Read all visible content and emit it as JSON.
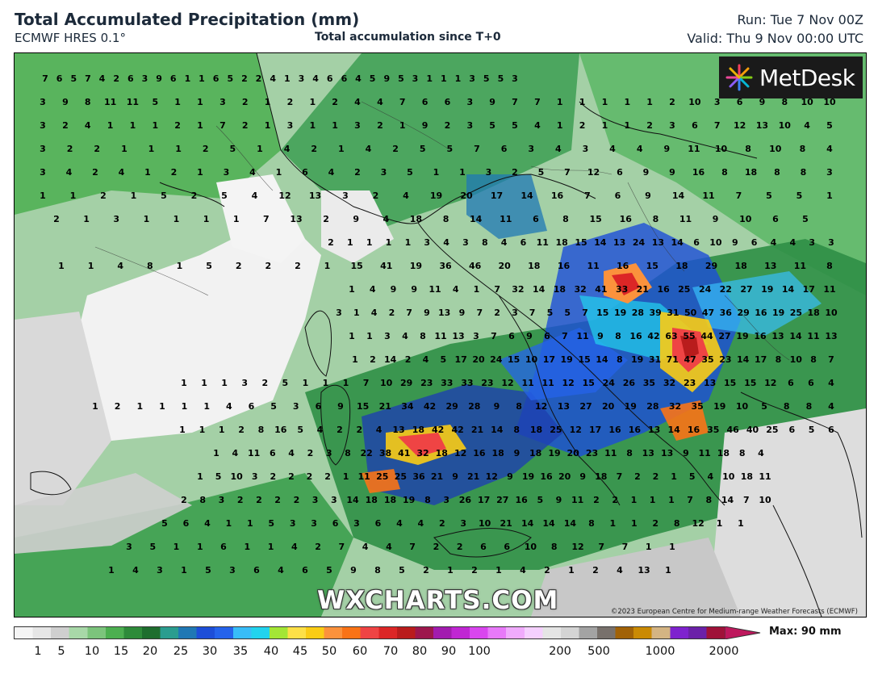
{
  "header": {
    "title": "Total Accumulated Precipitation (mm)",
    "model": "ECMWF HRES 0.1°",
    "subtitle": "Total accumulation since T+0",
    "run": "Run: Tue 7 Nov 00Z",
    "valid": "Valid: Thu 9 Nov 00:00 UTC"
  },
  "logo": {
    "icon": "metdesk-starburst-icon",
    "text": "MetDesk"
  },
  "watermark": "WXCHARTS.COM",
  "copyright": "©2023 European Centre for Medium-range Weather Forecasts (ECMWF)",
  "legend": {
    "max_label": "Max: 90 mm",
    "ticks": [
      "1",
      "5",
      "10",
      "15",
      "20",
      "25",
      "30",
      "35",
      "40",
      "45",
      "50",
      "60",
      "70",
      "80",
      "90",
      "100",
      "200",
      "500",
      "1000",
      "2000"
    ],
    "colors": [
      "#f5f5f5",
      "#e6e6e6",
      "#cfcfcf",
      "#a8d8a8",
      "#7cc47c",
      "#4caf50",
      "#2e8b3a",
      "#1e6e2e",
      "#2a9d8f",
      "#1f78b4",
      "#1d4ed8",
      "#2563eb",
      "#38bdf8",
      "#22d3ee",
      "#a3e635",
      "#fde047",
      "#facc15",
      "#fb923c",
      "#f97316",
      "#ef4444",
      "#dc2626",
      "#b91c1c",
      "#9d174d",
      "#a21caf",
      "#c026d3",
      "#d946ef",
      "#e879f9",
      "#f0abfc",
      "#f5d0fe",
      "#e5e5e5",
      "#d4d4d4",
      "#a3a3a3",
      "#78716c",
      "#a16207",
      "#ca8a04",
      "#d4b483",
      "#7e22ce",
      "#6b21a8",
      "#9f1239"
    ]
  },
  "map_values": [
    [
      "7",
      "6",
      "5",
      "7",
      "4",
      "2",
      "6",
      "3",
      "9",
      "6",
      "1",
      "1",
      "6",
      "5",
      "2",
      "2",
      "4",
      "1",
      "3",
      "4",
      "6",
      "6",
      "4",
      "5",
      "9",
      "5",
      "3",
      "1",
      "1",
      "1",
      "3",
      "5",
      "5",
      "3"
    ],
    [
      "3",
      "9",
      "8",
      "11",
      "11",
      "5",
      "1",
      "1",
      "3",
      "2",
      "1",
      "2",
      "1",
      "2",
      "4",
      "4",
      "7",
      "6",
      "6",
      "3",
      "9",
      "7",
      "7",
      "1",
      "1",
      "1",
      "1",
      "1",
      "2",
      "10",
      "3",
      "6",
      "9",
      "8",
      "10",
      "10"
    ],
    [
      "3",
      "2",
      "4",
      "1",
      "1",
      "1",
      "2",
      "1",
      "7",
      "2",
      "1",
      "3",
      "1",
      "1",
      "3",
      "2",
      "1",
      "9",
      "2",
      "3",
      "5",
      "5",
      "4",
      "1",
      "2",
      "1",
      "1",
      "2",
      "3",
      "6",
      "7",
      "12",
      "13",
      "10",
      "4",
      "5"
    ],
    [
      "3",
      "2",
      "2",
      "1",
      "1",
      "1",
      "2",
      "5",
      "1",
      "4",
      "2",
      "1",
      "4",
      "2",
      "5",
      "5",
      "7",
      "6",
      "3",
      "4",
      "3",
      "4",
      "4",
      "9",
      "11",
      "10",
      "8",
      "10",
      "8",
      "4"
    ],
    [
      "3",
      "4",
      "2",
      "4",
      "1",
      "2",
      "1",
      "3",
      "4",
      "1",
      "6",
      "4",
      "2",
      "3",
      "5",
      "1",
      "1",
      "3",
      "2",
      "5",
      "7",
      "12",
      "6",
      "9",
      "9",
      "16",
      "8",
      "18",
      "8",
      "8",
      "3"
    ],
    [
      "1",
      "1",
      "2",
      "1",
      "5",
      "2",
      "5",
      "4",
      "12",
      "13",
      "3",
      "2",
      "4",
      "19",
      "20",
      "17",
      "14",
      "16",
      "7",
      "6",
      "9",
      "14",
      "11",
      "7",
      "5",
      "5",
      "1"
    ],
    [
      "2",
      "1",
      "3",
      "1",
      "1",
      "1",
      "1",
      "7",
      "13",
      "2",
      "9",
      "4",
      "18",
      "8",
      "14",
      "11",
      "6",
      "8",
      "15",
      "16",
      "8",
      "11",
      "9",
      "10",
      "6",
      "5"
    ],
    [
      "2",
      "1",
      "1",
      "1",
      "1",
      "3",
      "4",
      "3",
      "8",
      "4",
      "6",
      "11",
      "18",
      "15",
      "14",
      "13",
      "24",
      "13",
      "14",
      "6",
      "10",
      "9",
      "6",
      "4",
      "4",
      "3",
      "3"
    ],
    [
      "1",
      "1",
      "4",
      "8",
      "1",
      "5",
      "2",
      "2",
      "2",
      "1",
      "15",
      "41",
      "19",
      "36",
      "46",
      "20",
      "18",
      "16",
      "11",
      "16",
      "15",
      "18",
      "29",
      "18",
      "13",
      "11",
      "8"
    ],
    [
      "1",
      "4",
      "9",
      "9",
      "11",
      "4",
      "1",
      "7",
      "32",
      "14",
      "18",
      "32",
      "41",
      "33",
      "21",
      "16",
      "25",
      "24",
      "22",
      "27",
      "19",
      "14",
      "17",
      "11"
    ],
    [
      "3",
      "1",
      "4",
      "2",
      "7",
      "9",
      "13",
      "9",
      "7",
      "2",
      "3",
      "7",
      "5",
      "5",
      "7",
      "15",
      "19",
      "28",
      "39",
      "31",
      "50",
      "47",
      "36",
      "29",
      "16",
      "19",
      "25",
      "18",
      "10"
    ],
    [
      "1",
      "1",
      "3",
      "4",
      "8",
      "11",
      "13",
      "3",
      "7",
      "6",
      "9",
      "6",
      "7",
      "11",
      "9",
      "8",
      "16",
      "42",
      "63",
      "55",
      "44",
      "27",
      "19",
      "16",
      "13",
      "14",
      "11",
      "13"
    ],
    [
      "1",
      "2",
      "14",
      "2",
      "4",
      "5",
      "17",
      "20",
      "24",
      "15",
      "10",
      "17",
      "19",
      "15",
      "14",
      "8",
      "19",
      "31",
      "71",
      "47",
      "35",
      "23",
      "14",
      "17",
      "8",
      "10",
      "8",
      "7"
    ],
    [
      "1",
      "1",
      "1",
      "3",
      "2",
      "5",
      "1",
      "1",
      "1",
      "7",
      "10",
      "29",
      "23",
      "33",
      "33",
      "23",
      "12",
      "11",
      "11",
      "12",
      "15",
      "24",
      "26",
      "35",
      "32",
      "23",
      "13",
      "15",
      "15",
      "12",
      "6",
      "6",
      "4"
    ],
    [
      "1",
      "2",
      "1",
      "1",
      "1",
      "1",
      "4",
      "6",
      "5",
      "3",
      "6",
      "9",
      "15",
      "21",
      "34",
      "42",
      "29",
      "28",
      "9",
      "8",
      "12",
      "13",
      "27",
      "20",
      "19",
      "28",
      "32",
      "35",
      "19",
      "10",
      "5",
      "8",
      "8",
      "4"
    ],
    [
      "1",
      "1",
      "1",
      "2",
      "8",
      "16",
      "5",
      "4",
      "2",
      "2",
      "4",
      "13",
      "18",
      "42",
      "42",
      "21",
      "14",
      "8",
      "18",
      "25",
      "12",
      "17",
      "16",
      "16",
      "13",
      "14",
      "16",
      "35",
      "46",
      "40",
      "25",
      "6",
      "5",
      "6"
    ],
    [
      "1",
      "4",
      "11",
      "6",
      "4",
      "2",
      "3",
      "8",
      "22",
      "38",
      "41",
      "32",
      "18",
      "12",
      "16",
      "18",
      "9",
      "18",
      "19",
      "20",
      "23",
      "11",
      "8",
      "13",
      "13",
      "9",
      "11",
      "18",
      "8",
      "4"
    ],
    [
      "1",
      "5",
      "10",
      "3",
      "2",
      "2",
      "2",
      "2",
      "1",
      "11",
      "25",
      "25",
      "36",
      "21",
      "9",
      "21",
      "12",
      "9",
      "19",
      "16",
      "20",
      "9",
      "18",
      "7",
      "2",
      "2",
      "1",
      "5",
      "4",
      "10",
      "18",
      "11"
    ],
    [
      "2",
      "8",
      "3",
      "2",
      "2",
      "2",
      "2",
      "3",
      "3",
      "14",
      "18",
      "18",
      "19",
      "8",
      "3",
      "26",
      "17",
      "27",
      "16",
      "5",
      "9",
      "11",
      "2",
      "2",
      "1",
      "1",
      "1",
      "7",
      "8",
      "14",
      "7",
      "10"
    ],
    [
      "5",
      "6",
      "4",
      "1",
      "1",
      "5",
      "3",
      "3",
      "6",
      "3",
      "6",
      "4",
      "4",
      "2",
      "3",
      "10",
      "21",
      "14",
      "14",
      "14",
      "8",
      "1",
      "1",
      "2",
      "8",
      "12",
      "1",
      "1"
    ],
    [
      "3",
      "5",
      "1",
      "1",
      "6",
      "1",
      "1",
      "4",
      "2",
      "7",
      "4",
      "4",
      "7",
      "2",
      "2",
      "6",
      "6",
      "10",
      "8",
      "12",
      "7",
      "7",
      "1",
      "1"
    ],
    [
      "1",
      "4",
      "3",
      "1",
      "5",
      "3",
      "6",
      "4",
      "6",
      "5",
      "9",
      "8",
      "5",
      "2",
      "1",
      "2",
      "1",
      "4",
      "2",
      "1",
      "2",
      "4",
      "13",
      "1"
    ]
  ]
}
